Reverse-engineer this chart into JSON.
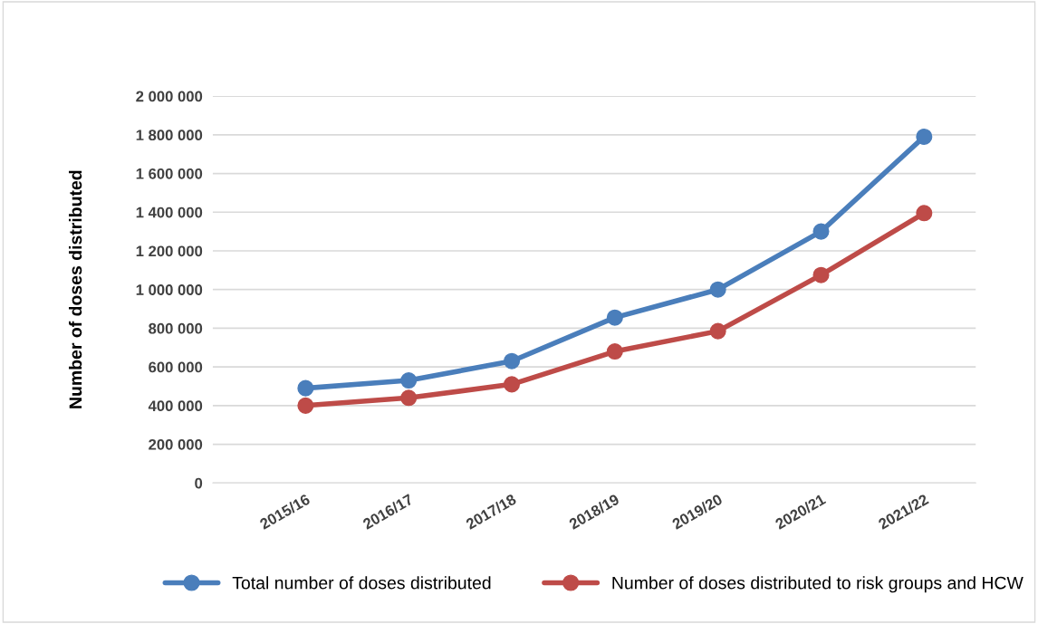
{
  "chart_data": {
    "type": "line",
    "ylabel": "Number of doses distributed",
    "categories": [
      "2015/16",
      "2016/17",
      "2017/18",
      "2018/19",
      "2019/20",
      "2020/21",
      "2021/22"
    ],
    "series": [
      {
        "name": "Total number of doses distributed",
        "color": "#4a7ebb",
        "values": [
          490000,
          530000,
          630000,
          855000,
          1000000,
          1300000,
          1790000
        ]
      },
      {
        "name": "Number of doses distributed to risk groups and HCW",
        "color": "#be4b48",
        "values": [
          400000,
          440000,
          510000,
          680000,
          785000,
          1075000,
          1395000
        ]
      }
    ],
    "ylim": [
      0,
      2000000
    ],
    "yticks": [
      0,
      {
        "value": 200000,
        "label": "200 000"
      },
      {
        "value": 400000,
        "label": "400 000"
      },
      {
        "value": 600000,
        "label": "600 000"
      },
      {
        "value": 800000,
        "label": "800 000"
      },
      {
        "value": 1000000,
        "label": "1 000 000"
      },
      {
        "value": 1200000,
        "label": "1 200 000"
      },
      {
        "value": 1400000,
        "label": "1 400 000"
      },
      {
        "value": 1600000,
        "label": "1 600 000"
      },
      {
        "value": 1800000,
        "label": "1 800 000"
      },
      {
        "value": 2000000,
        "label": "2 000 000"
      }
    ],
    "grid": "y",
    "legend": "bottom",
    "marker": "circle",
    "line_style": "solid"
  }
}
